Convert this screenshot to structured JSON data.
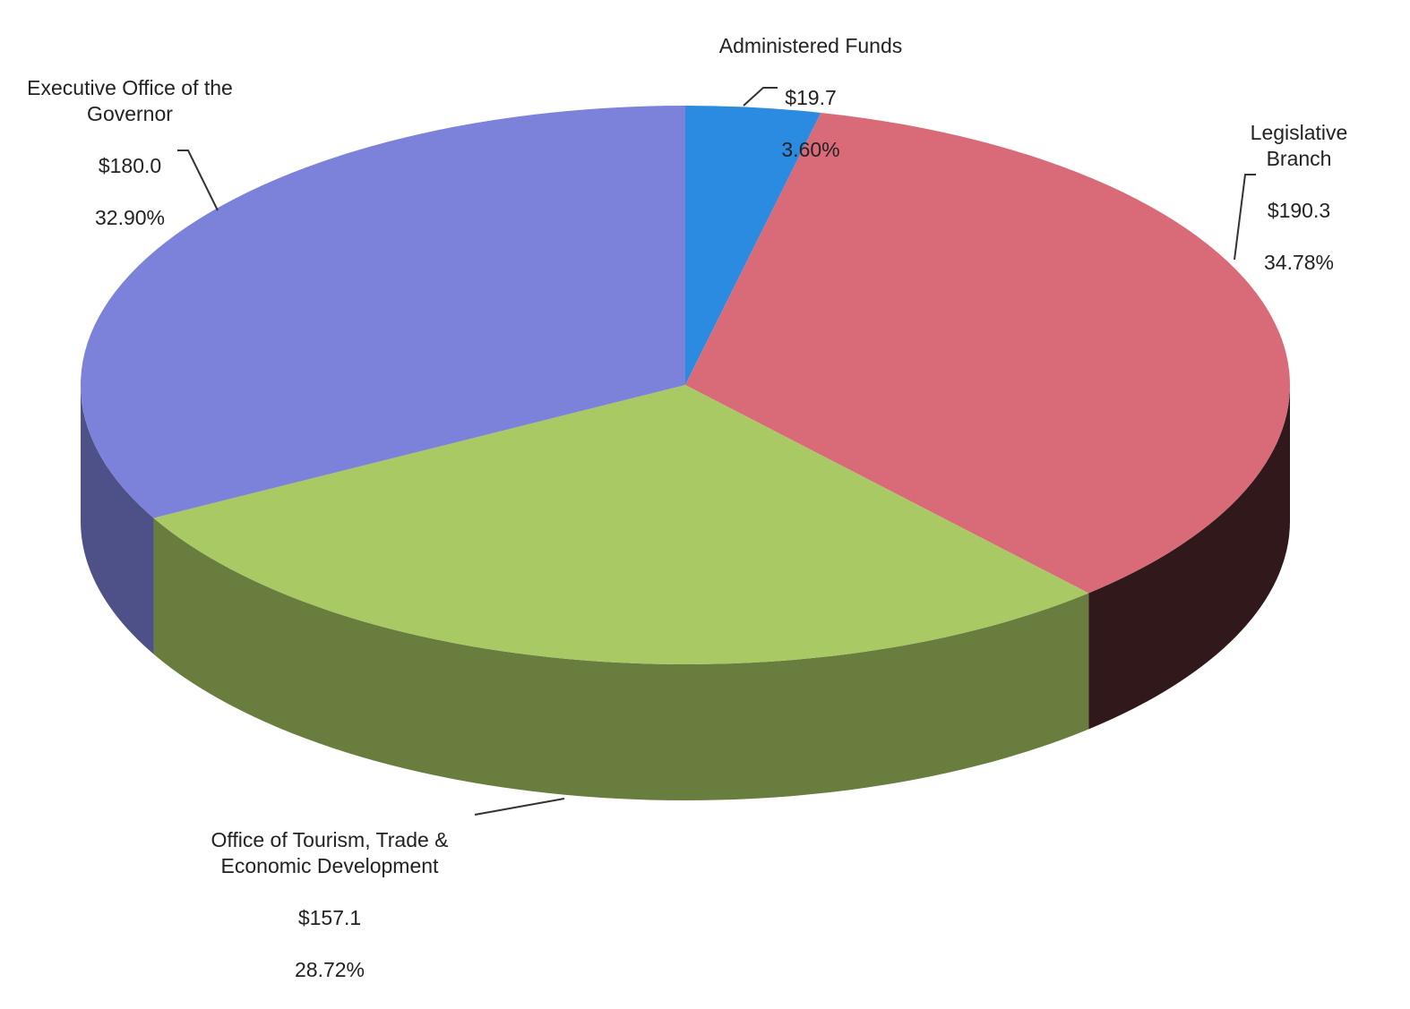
{
  "chart_data": {
    "type": "pie3d",
    "categories": [
      "Administered Funds",
      "Legislative Branch",
      "Office of Tourism, Trade &\nEconomic Development",
      "Executive Office of the\nGovernor"
    ],
    "values": [
      19.7,
      190.3,
      157.1,
      180.0
    ],
    "value_labels": [
      "$19.7",
      "$190.3",
      "$157.1",
      "$180.0"
    ],
    "percent_values": [
      3.6,
      34.78,
      28.72,
      32.9
    ],
    "percent_labels": [
      "3.60%",
      "34.78%",
      "28.72%",
      "32.90%"
    ],
    "colors": [
      "#2b8be0",
      "#d96b79",
      "#a9c965",
      "#7c82d9"
    ]
  }
}
